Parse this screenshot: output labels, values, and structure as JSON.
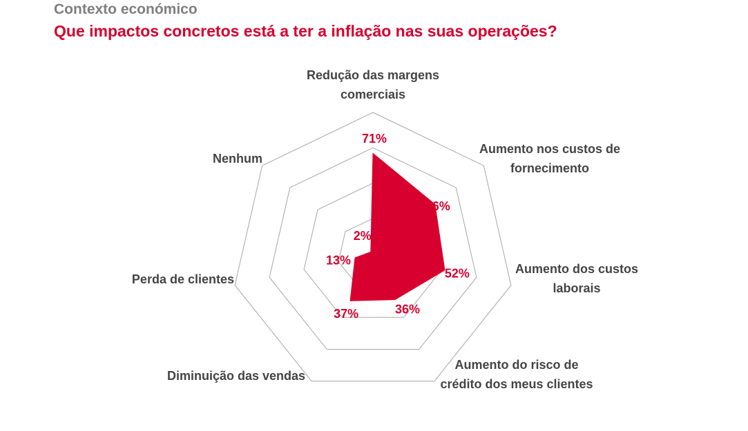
{
  "header": {
    "subtitle": "Contexto económico",
    "title": "Que impactos concretos está a ter a inflação nas suas operações?"
  },
  "colors": {
    "accent": "#d7002e",
    "subtitle": "#7f7f7f",
    "grid": "#a6a6a6",
    "label": "#444444"
  },
  "chart_data": {
    "type": "radar",
    "title": "Que impactos concretos está a ter a inflação nas suas operações?",
    "categories": [
      [
        "Redução das margens",
        "comerciais"
      ],
      [
        "Aumento nos custos de",
        "fornecimento"
      ],
      [
        "Aumento dos custos",
        "laborais"
      ],
      [
        "Aumento do risco de",
        "crédito dos meus clientes"
      ],
      [
        "Diminuição das vendas"
      ],
      [
        "Perda de clientes"
      ],
      [
        "Nenhum"
      ]
    ],
    "values": [
      71,
      56,
      52,
      36,
      37,
      13,
      2
    ],
    "value_labels": [
      "71%",
      "56%",
      "52%",
      "36%",
      "37%",
      "13%",
      "2%"
    ],
    "rmax": 100,
    "rings": 4,
    "unit": "%"
  }
}
